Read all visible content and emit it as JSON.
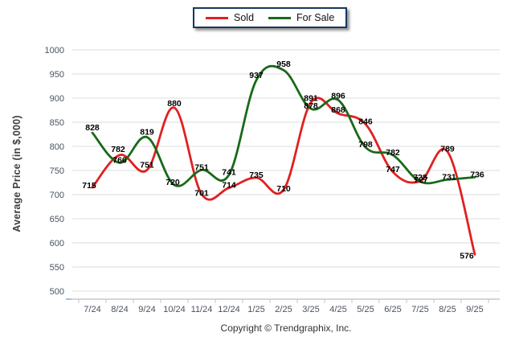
{
  "legend": {
    "items": [
      {
        "label": "Sold"
      },
      {
        "label": "For Sale"
      }
    ]
  },
  "footer": "Copyright © Trendgraphix, Inc.",
  "colors": {
    "sold": "#e02020",
    "for_sale": "#186a18",
    "grid": "#e9e9e9",
    "axis": "#c9c9c9",
    "tick": "#c4c4c4",
    "tick_label": "#4a5260",
    "data_label": "#000000",
    "legend_border": "#17375e",
    "blue_tick": "#9dc3e6"
  },
  "chart_data": {
    "type": "line",
    "categories": [
      "7/24",
      "8/24",
      "9/24",
      "10/24",
      "11/24",
      "12/24",
      "1/25",
      "2/25",
      "3/25",
      "4/25",
      "5/25",
      "6/25",
      "7/25",
      "8/25",
      "9/25"
    ],
    "series": [
      {
        "name": "Sold",
        "color": "#e02020",
        "values": [
          715,
          782,
          751,
          880,
          701,
          714,
          735,
          710,
          891,
          868,
          846,
          747,
          728,
          789,
          576
        ]
      },
      {
        "name": "For Sale",
        "color": "#186a18",
        "values": [
          828,
          766,
          819,
          720,
          751,
          741,
          937,
          958,
          878,
          896,
          798,
          782,
          727,
          731,
          736
        ]
      }
    ],
    "title": "",
    "xlabel": "",
    "ylabel": "Average Price (in $,000)",
    "ylim": [
      500,
      1000
    ],
    "ytick_step": 50,
    "grid": true,
    "data_labels": true,
    "legend_position": "top-center",
    "line_smoothing": "spline"
  }
}
